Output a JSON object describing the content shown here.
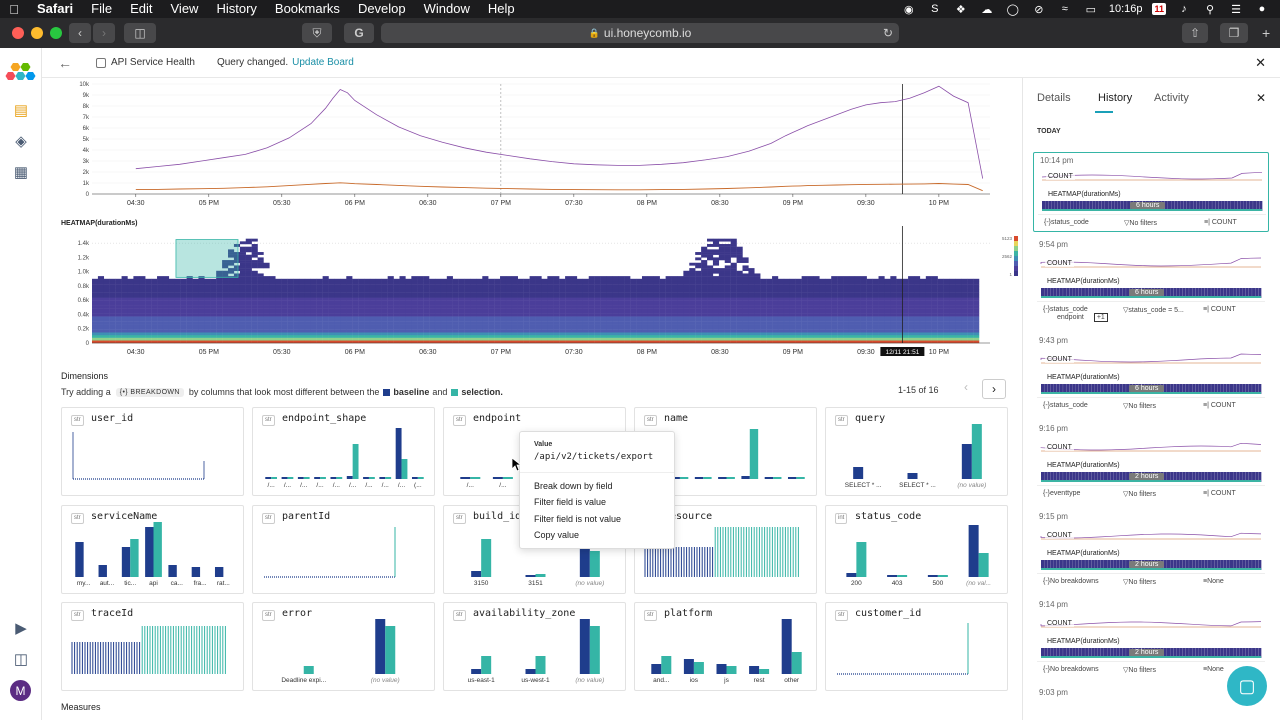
{
  "menubar": {
    "app": "Safari",
    "items": [
      "File",
      "Edit",
      "View",
      "History",
      "Bookmarks",
      "Develop",
      "Window",
      "Help"
    ],
    "calendar_day": "11",
    "clock": "10:16p"
  },
  "browser": {
    "url": "ui.honeycomb.io"
  },
  "topbar": {
    "breadcrumb": "API Service Health",
    "status": "Query changed.",
    "update_link": "Update Board"
  },
  "chart_data": [
    {
      "type": "line",
      "yticks": [
        "0",
        "1k",
        "2k",
        "3k",
        "4k",
        "5k",
        "6k",
        "7k",
        "8k",
        "9k",
        "10k"
      ],
      "xticks": [
        "04:30",
        "05 PM",
        "05:30",
        "06 PM",
        "06:30",
        "07 PM",
        "07:30",
        "08 PM",
        "08:30",
        "09 PM",
        "09:30",
        "10 PM"
      ],
      "ylim": [
        0,
        10000
      ],
      "x": [
        0,
        0.3,
        0.6,
        0.9,
        1.2,
        1.5,
        1.8,
        2.1,
        2.4,
        2.6,
        2.7,
        2.8,
        2.9,
        3.0,
        3.3,
        3.6,
        3.9,
        4.2,
        4.5,
        4.8,
        5.1,
        5.4,
        5.7,
        6.0,
        6.3,
        6.6,
        6.9,
        7.2,
        7.5,
        7.8,
        8.1,
        8.4,
        8.7,
        8.9,
        9.0,
        9.1,
        9.2,
        9.4,
        9.6,
        9.8,
        10.0,
        10.2,
        10.4,
        10.6,
        10.8,
        11.0,
        11.2,
        11.4,
        11.6
      ],
      "series": [
        {
          "values": [
            2300,
            2500,
            2700,
            3000,
            3300,
            3600,
            4200,
            5100,
            6400,
            7800,
            8700,
            9500,
            9200,
            8500,
            7200,
            6100,
            5300,
            4700,
            4200,
            3800,
            3500,
            3200,
            2950,
            2750,
            2650,
            2600,
            2600,
            2700,
            2850,
            3100,
            3400,
            3900,
            4600,
            5300,
            5600,
            5900,
            6200,
            6700,
            7200,
            7700,
            8100,
            8300,
            8400,
            8700,
            9200,
            9800,
            8900,
            8300,
            1400
          ]
        },
        {
          "values": [
            400,
            420,
            450,
            480,
            520,
            580,
            650,
            760,
            880,
            950,
            980,
            1020,
            980,
            940,
            860,
            780,
            700,
            640,
            580,
            530,
            490,
            450,
            420,
            400,
            390,
            380,
            380,
            400,
            420,
            450,
            500,
            560,
            640,
            700,
            720,
            740,
            760,
            790,
            820,
            850,
            870,
            880,
            890,
            900,
            920,
            950,
            900,
            860,
            300
          ]
        }
      ]
    },
    {
      "type": "heatmap",
      "title": "HEATMAP(durationMs)",
      "yticks": [
        "0",
        "0.2k",
        "0.4k",
        "0.6k",
        "0.8k",
        "1.0k",
        "1.2k",
        "1.4k"
      ],
      "xticks": [
        "04:30",
        "05 PM",
        "05:30",
        "06 PM",
        "06:30",
        "07 PM",
        "07:30",
        "08 PM",
        "08:30",
        "09 PM",
        "09:30",
        "10 PM"
      ],
      "legend_ticks": [
        "5123",
        "2562",
        "1"
      ],
      "hover_label": "12/11 21:51",
      "selection_range": [
        0.55,
        1.4
      ],
      "density_ceiling": 0.9,
      "spikes": [
        {
          "center": 1.5,
          "width": 0.8,
          "height": 1.45
        },
        {
          "center": 8.0,
          "width": 1.1,
          "height": 1.5
        }
      ],
      "colors": [
        "#3b3689",
        "#4b3e9a",
        "#4f5db0",
        "#3f8fb5",
        "#3cb4a4",
        "#8fd18a",
        "#e7d55b",
        "#d94b2d"
      ]
    }
  ],
  "dimensions": {
    "title": "Dimensions",
    "hint_prefix": "Try adding a",
    "hint_pill": "BREAKDOWN",
    "hint_mid": "by columns that look most different between the",
    "baseline": "baseline",
    "and": "and",
    "selection": "selection.",
    "pager": "1-15 of 16",
    "colors": {
      "baseline": "#1f3d8c",
      "selection": "#35b5a6"
    },
    "cards": [
      {
        "name": "user_id",
        "type": "str",
        "kind": "strip",
        "labels": []
      },
      {
        "name": "endpoint_shape",
        "type": "str",
        "kind": "bars",
        "labels": [
          "/...",
          "/...",
          "/...",
          "/...",
          "/...",
          "/...",
          "/...",
          "/...",
          "/...",
          "(..."
        ],
        "pairs": [
          [
            2,
            2
          ],
          [
            2,
            2
          ],
          [
            2,
            2
          ],
          [
            2,
            2
          ],
          [
            2,
            2
          ],
          [
            3,
            35
          ],
          [
            2,
            2
          ],
          [
            2,
            2
          ],
          [
            51,
            20
          ],
          [
            2,
            2
          ]
        ]
      },
      {
        "name": "endpoint",
        "type": "str",
        "kind": "bars",
        "labels": [
          "/...",
          "/...",
          "/...",
          "/...",
          "/..."
        ],
        "pairs": [
          [
            2,
            2
          ],
          [
            2,
            2
          ],
          [
            2,
            2
          ],
          [
            3,
            35
          ],
          [
            2,
            2
          ]
        ]
      },
      {
        "name": "name",
        "type": "str",
        "kind": "bars",
        "labels": [],
        "pairs": [
          [
            2,
            2
          ],
          [
            2,
            2
          ],
          [
            2,
            2
          ],
          [
            2,
            2
          ],
          [
            3,
            50
          ],
          [
            2,
            2
          ],
          [
            2,
            2
          ]
        ]
      },
      {
        "name": "query",
        "type": "str",
        "kind": "bars",
        "labels": [
          "SELECT * ...",
          "SELECT * ...",
          "(no value)"
        ],
        "pairs": [
          [
            12,
            0
          ],
          [
            6,
            0
          ],
          [
            35,
            55
          ]
        ]
      },
      {
        "name": "serviceName",
        "type": "str",
        "kind": "bars",
        "labels": [
          "my...",
          "aut...",
          "tic...",
          "api",
          "ca...",
          "fra...",
          "rat..."
        ],
        "pairs": [
          [
            35,
            0
          ],
          [
            12,
            0
          ],
          [
            30,
            38
          ],
          [
            50,
            55
          ],
          [
            12,
            0
          ],
          [
            10,
            0
          ],
          [
            10,
            0
          ]
        ]
      },
      {
        "name": "parentId",
        "type": "str",
        "kind": "strip2",
        "labels": []
      },
      {
        "name": "build_id",
        "type": "str",
        "kind": "bars",
        "labels": [
          "3150",
          "3151",
          "(no value)"
        ],
        "pairs": [
          [
            6,
            38
          ],
          [
            2,
            3
          ],
          [
            32,
            26
          ]
        ]
      },
      {
        "name": "resource",
        "type": "str",
        "kind": "stripes",
        "labels": []
      },
      {
        "name": "status_code",
        "type": "int",
        "kind": "bars",
        "labels": [
          "200",
          "403",
          "500",
          "(no val..."
        ],
        "pairs": [
          [
            4,
            35
          ],
          [
            2,
            2
          ],
          [
            2,
            2
          ],
          [
            52,
            24
          ]
        ]
      },
      {
        "name": "traceId",
        "type": "str",
        "kind": "stripes2",
        "labels": []
      },
      {
        "name": "error",
        "type": "str",
        "kind": "bars",
        "labels": [
          "Deadline expi...",
          "(no value)"
        ],
        "pairs": [
          [
            0,
            8
          ],
          [
            55,
            48
          ]
        ]
      },
      {
        "name": "availability_zone",
        "type": "str",
        "kind": "bars",
        "labels": [
          "us-east-1",
          "us-west-1",
          "(no value)"
        ],
        "pairs": [
          [
            5,
            18
          ],
          [
            5,
            18
          ],
          [
            55,
            48
          ]
        ]
      },
      {
        "name": "platform",
        "type": "str",
        "kind": "bars",
        "labels": [
          "and...",
          "ios",
          "js",
          "rest",
          "other"
        ],
        "pairs": [
          [
            10,
            18
          ],
          [
            15,
            12
          ],
          [
            10,
            8
          ],
          [
            8,
            5
          ],
          [
            55,
            22
          ]
        ]
      },
      {
        "name": "customer_id",
        "type": "str",
        "kind": "strip3",
        "labels": []
      }
    ]
  },
  "popover": {
    "header": "Value",
    "value": "/api/v2/tickets/export",
    "actions": [
      "Break down by field",
      "Filter field is value",
      "Filter field is not value",
      "Copy value"
    ]
  },
  "measures": "Measures",
  "sidepanel": {
    "tabs": [
      "Details",
      "History",
      "Activity"
    ],
    "active_tab": "History",
    "section": "TODAY",
    "entries": [
      {
        "time": "10:14 pm",
        "l1": "COUNT",
        "l2": "HEATMAP(durationMs)",
        "badge": "6 hours",
        "group": "status_code",
        "filters": "No filters",
        "order": "| COUNT",
        "highlight": true
      },
      {
        "time": "9:54 pm",
        "l1": "COUNT",
        "l2": "HEATMAP(durationMs)",
        "badge": "6 hours",
        "group": "status_code",
        "group2": "endpoint",
        "plus": "+1",
        "filters": "status_code = 5...",
        "order": "| COUNT",
        "highlight": false
      },
      {
        "time": "9:43 pm",
        "l1": "COUNT",
        "l2": "HEATMAP(durationMs)",
        "badge": "6 hours",
        "group": "status_code",
        "filters": "No filters",
        "order": "| COUNT",
        "highlight": false
      },
      {
        "time": "9:16 pm",
        "l1": "COUNT",
        "l2": "HEATMAP(durationMs)",
        "badge": "2 hours",
        "group": "eventtype",
        "filters": "No filters",
        "order": "| COUNT",
        "highlight": false
      },
      {
        "time": "9:15 pm",
        "l1": "COUNT",
        "l2": "HEATMAP(durationMs)",
        "badge": "2 hours",
        "group": "No breakdowns",
        "filters": "No filters",
        "order": "None",
        "highlight": false
      },
      {
        "time": "9:14 pm",
        "l1": "COUNT",
        "l2": "HEATMAP(durationMs)",
        "badge": "2 hours",
        "group": "No breakdowns",
        "filters": "No filters",
        "order": "None",
        "highlight": false
      },
      {
        "time": "9:03 pm",
        "l1": "",
        "l2": "",
        "badge": "",
        "group": "",
        "filters": "",
        "order": "",
        "highlight": false
      }
    ]
  }
}
